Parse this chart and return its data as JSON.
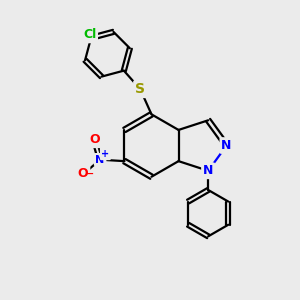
{
  "background_color": "#ebebeb",
  "atom_colors": {
    "C": "#000000",
    "N": "#0000ff",
    "O": "#ff0000",
    "S": "#999900",
    "Cl": "#00bb00"
  },
  "bond_color": "#000000",
  "bond_width": 1.6,
  "figsize": [
    3.0,
    3.0
  ],
  "dpi": 100,
  "xlim": [
    0,
    10
  ],
  "ylim": [
    0,
    10
  ]
}
